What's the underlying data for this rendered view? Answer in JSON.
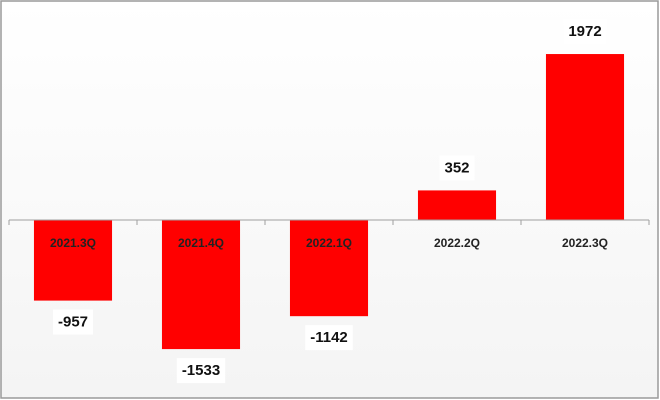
{
  "chart_data": {
    "type": "bar",
    "categories": [
      "2021.3Q",
      "2021.4Q",
      "2022.1Q",
      "2022.2Q",
      "2022.3Q"
    ],
    "values": [
      -957,
      -1533,
      -1142,
      352,
      1972
    ],
    "color": "#ff0000",
    "ylim": [
      -2000,
      2500
    ]
  }
}
